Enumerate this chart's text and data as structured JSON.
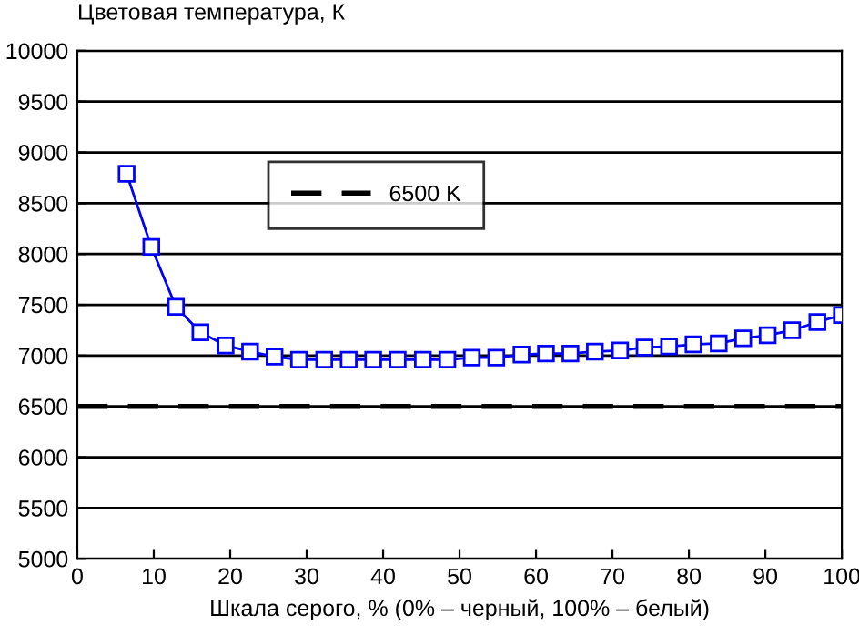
{
  "chart_data": {
    "type": "line",
    "ylabel": "Цветовая температура, К",
    "xlabel": "Шкала серого, % (0% – черный, 100% – белый)",
    "x": [
      6.45,
      9.68,
      12.9,
      16.1,
      19.4,
      22.6,
      25.8,
      29.0,
      32.3,
      35.5,
      38.7,
      41.9,
      45.2,
      48.4,
      51.6,
      54.8,
      58.1,
      61.3,
      64.5,
      67.7,
      71.0,
      74.2,
      77.4,
      80.6,
      83.9,
      87.1,
      90.3,
      93.5,
      96.8,
      100
    ],
    "series": [
      {
        "color": "#0000ff",
        "values": [
          8790,
          8070,
          7480,
          7230,
          7100,
          7040,
          6990,
          6960,
          6960,
          6960,
          6960,
          6960,
          6960,
          6960,
          6980,
          6980,
          7010,
          7020,
          7020,
          7040,
          7050,
          7080,
          7090,
          7110,
          7120,
          7170,
          7200,
          7250,
          7330,
          7400
        ]
      }
    ],
    "marker": "square",
    "line_style": "solid",
    "ref_lines": [
      {
        "axis": "y",
        "value": 6500,
        "label": "6500 K",
        "color": "#000000",
        "line_style": "dashed"
      }
    ],
    "xlim": [
      0,
      100
    ],
    "xticks": [
      0,
      10,
      20,
      30,
      40,
      50,
      60,
      70,
      80,
      90,
      100
    ],
    "ylim": [
      5000,
      10000
    ],
    "yticks": [
      5000,
      5500,
      6000,
      6500,
      7000,
      7500,
      8000,
      8500,
      9000,
      9500,
      10000
    ],
    "grid": "y",
    "legend": "top"
  }
}
